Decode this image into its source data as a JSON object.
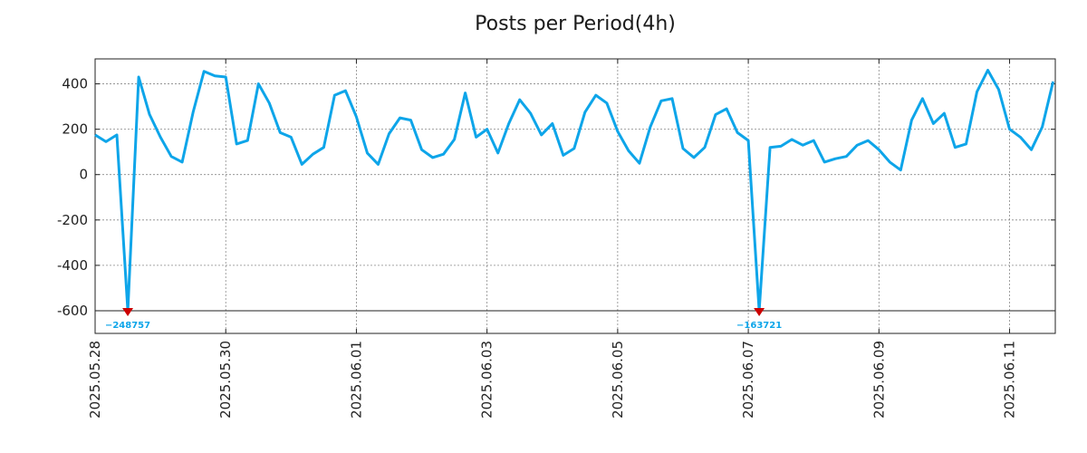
{
  "chart_data": {
    "type": "line",
    "title": "Posts per Period(4h)",
    "xlabel": "",
    "ylabel": "",
    "line_color": "#0ea5e9",
    "marker_color": "#cc0000",
    "grid": true,
    "x_start": "2025.05.28",
    "x_step_hours": 4,
    "xlim_days": [
      0,
      14.7
    ],
    "ylim": [
      -700,
      510
    ],
    "y_ticks": [
      400,
      200,
      0,
      -200,
      -400,
      -600
    ],
    "x_ticks": [
      {
        "day": 0,
        "label": "2025.05.28"
      },
      {
        "day": 2,
        "label": "2025.05.30"
      },
      {
        "day": 4,
        "label": "2025.06.01"
      },
      {
        "day": 6,
        "label": "2025.06.03"
      },
      {
        "day": 8,
        "label": "2025.06.05"
      },
      {
        "day": 10,
        "label": "2025.06.07"
      },
      {
        "day": 12,
        "label": "2025.06.09"
      },
      {
        "day": 14,
        "label": "2025.06.11"
      }
    ],
    "clip_value": -600,
    "series": [
      {
        "name": "Posts",
        "values": [
          175,
          145,
          175,
          -600,
          430,
          265,
          165,
          80,
          55,
          275,
          455,
          435,
          430,
          135,
          150,
          400,
          315,
          185,
          165,
          45,
          90,
          120,
          350,
          370,
          255,
          95,
          45,
          180,
          250,
          240,
          110,
          75,
          90,
          155,
          360,
          165,
          200,
          95,
          225,
          330,
          270,
          175,
          225,
          85,
          115,
          275,
          350,
          315,
          190,
          105,
          50,
          210,
          325,
          335,
          115,
          75,
          120,
          265,
          290,
          185,
          150,
          -600,
          120,
          125,
          155,
          130,
          150,
          55,
          70,
          80,
          130,
          150,
          110,
          55,
          20,
          240,
          335,
          225,
          270,
          120,
          135,
          365,
          460,
          375,
          200,
          165,
          110,
          210,
          410
        ]
      }
    ],
    "annotations": [
      {
        "index": 3,
        "text": "−248757"
      },
      {
        "index": 61,
        "text": "−163721"
      }
    ]
  }
}
